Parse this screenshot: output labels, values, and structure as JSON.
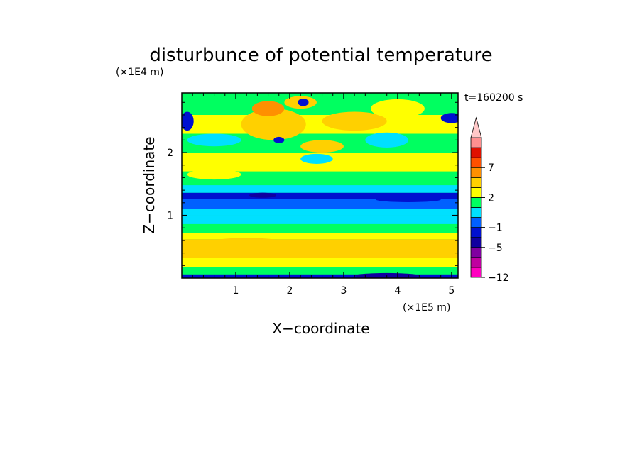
{
  "chart_data": {
    "type": "heatmap",
    "title": "disturbunce of potential temperature",
    "time_label": "t=160200 s",
    "xlabel": "X−coordinate",
    "ylabel": "Z−coordinate",
    "x_unit": "(×1E5 m)",
    "y_unit": "(×1E4 m)",
    "xlim": [
      0,
      5.12
    ],
    "ylim": [
      0,
      2.95
    ],
    "x_ticks": [
      "1",
      "2",
      "3",
      "4",
      "5"
    ],
    "y_ticks": [
      "1",
      "2"
    ],
    "colorbar": {
      "levels": [
        -12,
        -9,
        -7,
        -5,
        -3,
        -1,
        0,
        1,
        2,
        3,
        5,
        7,
        9,
        12
      ],
      "tick_labels": [
        "−12",
        "−5",
        "−1",
        "2",
        "7"
      ],
      "colors": [
        "#ff00c0",
        "#c000a0",
        "#8000a0",
        "#1000a0",
        "#0010d0",
        "#0060ff",
        "#00e0ff",
        "#00ff60",
        "#ffff00",
        "#ffd000",
        "#ff9000",
        "#ff5000",
        "#e01000",
        "#ff9090",
        "#ffc8c8"
      ],
      "extend": "max"
    },
    "bands": [
      {
        "z": [
          0.0,
          0.06
        ],
        "level": 4
      },
      {
        "z": [
          0.06,
          0.18
        ],
        "level": 7
      },
      {
        "z": [
          0.18,
          0.32
        ],
        "level": 8
      },
      {
        "z": [
          0.32,
          0.62
        ],
        "level": 9
      },
      {
        "z": [
          0.62,
          0.72
        ],
        "level": 8
      },
      {
        "z": [
          0.72,
          0.86
        ],
        "level": 7
      },
      {
        "z": [
          0.86,
          1.0
        ],
        "level": 6
      },
      {
        "z": [
          1.0,
          1.1
        ],
        "level": 6
      },
      {
        "z": [
          1.1,
          1.26
        ],
        "level": 5
      },
      {
        "z": [
          1.26,
          1.36
        ],
        "level": 4
      },
      {
        "z": [
          1.36,
          1.48
        ],
        "level": 6
      },
      {
        "z": [
          1.48,
          1.7
        ],
        "level": 7
      },
      {
        "z": [
          1.7,
          2.0
        ],
        "level": 8
      },
      {
        "z": [
          2.0,
          2.3
        ],
        "level": 7
      },
      {
        "z": [
          2.3,
          2.6
        ],
        "level": 8
      },
      {
        "z": [
          2.6,
          2.95
        ],
        "level": 7
      }
    ],
    "blobs": [
      {
        "x": 1.2,
        "z": 0.48,
        "rx": 1.0,
        "rz": 0.16,
        "level": 9
      },
      {
        "x": 3.3,
        "z": 0.52,
        "rx": 0.5,
        "rz": 0.1,
        "level": 9
      },
      {
        "x": 0.6,
        "z": 1.65,
        "rx": 0.5,
        "rz": 0.08,
        "level": 8
      },
      {
        "x": 1.7,
        "z": 2.45,
        "rx": 0.6,
        "rz": 0.25,
        "level": 9
      },
      {
        "x": 1.6,
        "z": 2.7,
        "rx": 0.3,
        "rz": 0.12,
        "level": 10
      },
      {
        "x": 2.2,
        "z": 2.8,
        "rx": 0.3,
        "rz": 0.1,
        "level": 9
      },
      {
        "x": 3.2,
        "z": 2.5,
        "rx": 0.6,
        "rz": 0.15,
        "level": 9
      },
      {
        "x": 4.0,
        "z": 2.7,
        "rx": 0.5,
        "rz": 0.15,
        "level": 8
      },
      {
        "x": 2.6,
        "z": 2.1,
        "rx": 0.4,
        "rz": 0.1,
        "level": 9
      },
      {
        "x": 3.8,
        "z": 2.2,
        "rx": 0.4,
        "rz": 0.12,
        "level": 6
      },
      {
        "x": 0.1,
        "z": 2.5,
        "rx": 0.12,
        "rz": 0.15,
        "level": 4
      },
      {
        "x": 5.0,
        "z": 2.55,
        "rx": 0.2,
        "rz": 0.08,
        "level": 4
      },
      {
        "x": 2.25,
        "z": 2.8,
        "rx": 0.1,
        "rz": 0.06,
        "level": 4
      },
      {
        "x": 1.8,
        "z": 2.2,
        "rx": 0.1,
        "rz": 0.05,
        "level": 4
      },
      {
        "x": 1.5,
        "z": 1.32,
        "rx": 0.25,
        "rz": 0.04,
        "level": 3
      },
      {
        "x": 4.2,
        "z": 1.25,
        "rx": 0.6,
        "rz": 0.04,
        "level": 4
      },
      {
        "x": 3.8,
        "z": 0.04,
        "rx": 0.6,
        "rz": 0.04,
        "level": 3
      },
      {
        "x": 0.6,
        "z": 2.2,
        "rx": 0.5,
        "rz": 0.1,
        "level": 6
      },
      {
        "x": 2.5,
        "z": 1.9,
        "rx": 0.3,
        "rz": 0.08,
        "level": 6
      }
    ]
  }
}
